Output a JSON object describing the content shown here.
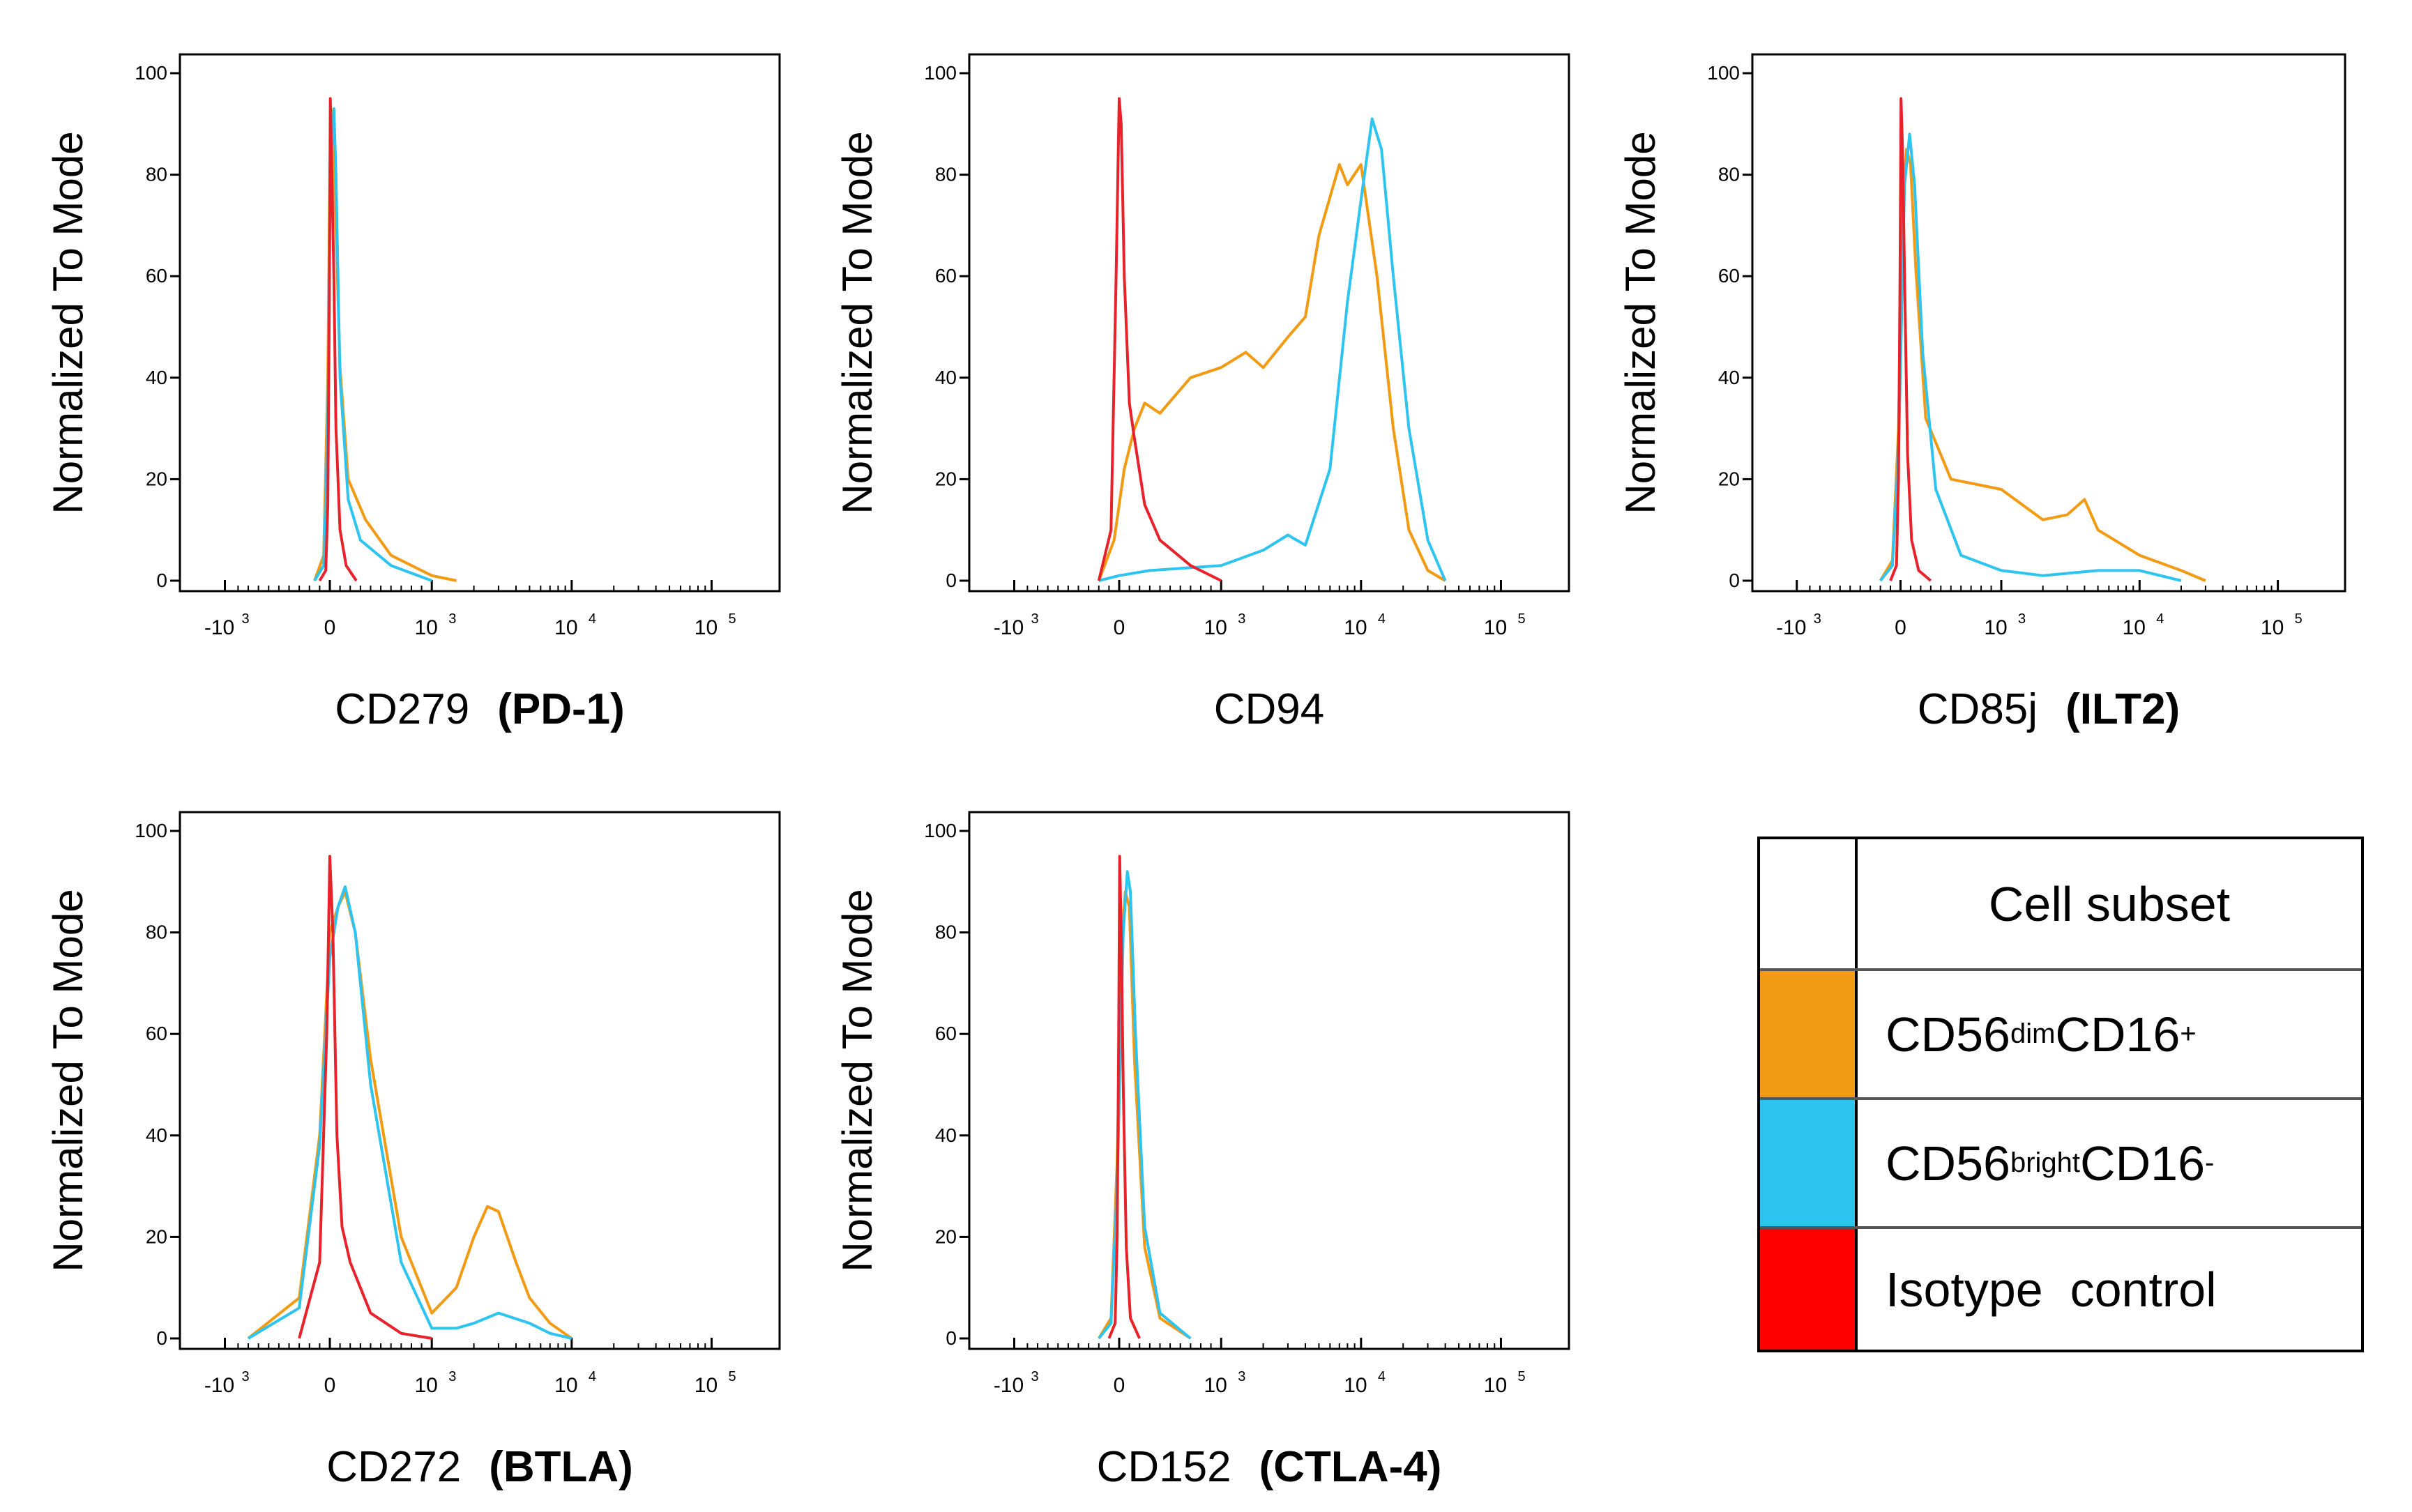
{
  "chart_data": {
    "type": "line",
    "series_legend": {
      "header": "Cell subset",
      "entries": [
        {
          "key": "dim",
          "base1": "CD56",
          "sup1": "dim",
          "base2": "CD16",
          "sup2": "+",
          "color": "#F29A12"
        },
        {
          "key": "bright",
          "base1": "CD56",
          "sup1": "bright",
          "base2": "CD16",
          "sup2": "-",
          "color": "#2EC4F0"
        },
        {
          "key": "iso",
          "text": "Isotype  control",
          "color": "#E8222A"
        }
      ]
    },
    "y_axis": {
      "label": "Normalized To Mode",
      "ticks": [
        0,
        20,
        40,
        60,
        80,
        100
      ],
      "ylim": [
        0,
        100
      ]
    },
    "x_axis": {
      "scale": "biexponential",
      "ticks": [
        {
          "pos": -1000,
          "base": "-10",
          "exp": "3"
        },
        {
          "pos": 0,
          "base": "0",
          "exp": ""
        },
        {
          "pos": 1000,
          "base": "10",
          "exp": "3"
        },
        {
          "pos": 10000,
          "base": "10",
          "exp": "4"
        },
        {
          "pos": 100000,
          "base": "10",
          "exp": "5"
        }
      ]
    },
    "panels": [
      {
        "id": "pd1",
        "title": "CD279",
        "title_bold": "(PD-1)",
        "series": {
          "iso": [
            [
              -100,
              0
            ],
            [
              -40,
              2
            ],
            [
              -20,
              15
            ],
            [
              -5,
              55
            ],
            [
              5,
              95
            ],
            [
              20,
              80
            ],
            [
              40,
              60
            ],
            [
              60,
              30
            ],
            [
              100,
              10
            ],
            [
              160,
              3
            ],
            [
              260,
              0
            ]
          ],
          "dim": [
            [
              -150,
              0
            ],
            [
              -60,
              5
            ],
            [
              -20,
              40
            ],
            [
              0,
              80
            ],
            [
              10,
              93
            ],
            [
              30,
              85
            ],
            [
              60,
              70
            ],
            [
              100,
              42
            ],
            [
              180,
              20
            ],
            [
              350,
              12
            ],
            [
              600,
              5
            ],
            [
              1000,
              1
            ],
            [
              1500,
              0
            ]
          ],
          "bright": [
            [
              -150,
              0
            ],
            [
              -60,
              3
            ],
            [
              -20,
              30
            ],
            [
              0,
              70
            ],
            [
              20,
              85
            ],
            [
              40,
              93
            ],
            [
              60,
              80
            ],
            [
              100,
              40
            ],
            [
              180,
              16
            ],
            [
              300,
              8
            ],
            [
              600,
              3
            ],
            [
              1000,
              0
            ]
          ]
        }
      },
      {
        "id": "cd94",
        "title": "CD94",
        "title_bold": "",
        "series": {
          "iso": [
            [
              -200,
              0
            ],
            [
              -80,
              10
            ],
            [
              -30,
              60
            ],
            [
              0,
              95
            ],
            [
              20,
              90
            ],
            [
              50,
              60
            ],
            [
              100,
              35
            ],
            [
              150,
              28
            ],
            [
              250,
              15
            ],
            [
              400,
              8
            ],
            [
              700,
              3
            ],
            [
              1000,
              0
            ]
          ],
          "dim": [
            [
              -200,
              0
            ],
            [
              -50,
              8
            ],
            [
              50,
              22
            ],
            [
              150,
              30
            ],
            [
              250,
              35
            ],
            [
              400,
              33
            ],
            [
              700,
              40
            ],
            [
              1000,
              42
            ],
            [
              1500,
              45
            ],
            [
              2000,
              42
            ],
            [
              3000,
              48
            ],
            [
              4000,
              52
            ],
            [
              5000,
              68
            ],
            [
              7000,
              82
            ],
            [
              8000,
              78
            ],
            [
              10000,
              82
            ],
            [
              13000,
              60
            ],
            [
              17000,
              30
            ],
            [
              22000,
              10
            ],
            [
              30000,
              2
            ],
            [
              40000,
              0
            ]
          ],
          "bright": [
            [
              -200,
              0
            ],
            [
              0,
              1
            ],
            [
              300,
              2
            ],
            [
              1000,
              3
            ],
            [
              2000,
              6
            ],
            [
              3000,
              9
            ],
            [
              4000,
              7
            ],
            [
              6000,
              22
            ],
            [
              8000,
              55
            ],
            [
              10000,
              75
            ],
            [
              12000,
              91
            ],
            [
              14000,
              85
            ],
            [
              17000,
              60
            ],
            [
              22000,
              30
            ],
            [
              30000,
              8
            ],
            [
              40000,
              0
            ]
          ]
        }
      },
      {
        "id": "ilt2",
        "title": "CD85j",
        "title_bold": "(ILT2)",
        "series": {
          "iso": [
            [
              -100,
              0
            ],
            [
              -40,
              3
            ],
            [
              -20,
              20
            ],
            [
              -5,
              60
            ],
            [
              5,
              95
            ],
            [
              20,
              85
            ],
            [
              40,
              60
            ],
            [
              70,
              25
            ],
            [
              110,
              8
            ],
            [
              180,
              2
            ],
            [
              300,
              0
            ]
          ],
          "dim": [
            [
              -200,
              0
            ],
            [
              -80,
              4
            ],
            [
              -20,
              30
            ],
            [
              20,
              75
            ],
            [
              60,
              85
            ],
            [
              100,
              82
            ],
            [
              150,
              62
            ],
            [
              250,
              32
            ],
            [
              500,
              20
            ],
            [
              1000,
              18
            ],
            [
              2000,
              12
            ],
            [
              3000,
              13
            ],
            [
              4000,
              16
            ],
            [
              5000,
              10
            ],
            [
              10000,
              5
            ],
            [
              20000,
              2
            ],
            [
              30000,
              0
            ]
          ],
          "bright": [
            [
              -200,
              0
            ],
            [
              -80,
              3
            ],
            [
              -20,
              25
            ],
            [
              40,
              78
            ],
            [
              90,
              88
            ],
            [
              140,
              78
            ],
            [
              220,
              45
            ],
            [
              350,
              18
            ],
            [
              600,
              5
            ],
            [
              1000,
              2
            ],
            [
              2000,
              1
            ],
            [
              5000,
              2
            ],
            [
              10000,
              2
            ],
            [
              20000,
              0
            ]
          ]
        }
      },
      {
        "id": "btla",
        "title": "CD272",
        "title_bold": "(BTLA)",
        "series": {
          "iso": [
            [
              -300,
              0
            ],
            [
              -100,
              15
            ],
            [
              -30,
              60
            ],
            [
              0,
              95
            ],
            [
              30,
              80
            ],
            [
              70,
              40
            ],
            [
              120,
              22
            ],
            [
              200,
              15
            ],
            [
              400,
              5
            ],
            [
              700,
              1
            ],
            [
              1000,
              0
            ]
          ],
          "dim": [
            [
              -800,
              0
            ],
            [
              -300,
              8
            ],
            [
              -100,
              40
            ],
            [
              0,
              80
            ],
            [
              80,
              85
            ],
            [
              150,
              88
            ],
            [
              250,
              80
            ],
            [
              400,
              55
            ],
            [
              700,
              20
            ],
            [
              1000,
              5
            ],
            [
              1500,
              10
            ],
            [
              2000,
              20
            ],
            [
              2500,
              26
            ],
            [
              3000,
              25
            ],
            [
              4000,
              15
            ],
            [
              5000,
              8
            ],
            [
              7000,
              3
            ],
            [
              10000,
              0
            ]
          ],
          "bright": [
            [
              -800,
              0
            ],
            [
              -300,
              6
            ],
            [
              -100,
              38
            ],
            [
              0,
              75
            ],
            [
              80,
              85
            ],
            [
              150,
              89
            ],
            [
              250,
              80
            ],
            [
              400,
              50
            ],
            [
              700,
              15
            ],
            [
              1000,
              2
            ],
            [
              1500,
              2
            ],
            [
              2000,
              3
            ],
            [
              3000,
              5
            ],
            [
              5000,
              3
            ],
            [
              7000,
              1
            ],
            [
              10000,
              0
            ]
          ]
        }
      },
      {
        "id": "ctla4",
        "title": "CD152",
        "title_bold": "(CTLA-4)",
        "series": {
          "iso": [
            [
              -100,
              0
            ],
            [
              -40,
              3
            ],
            [
              -20,
              20
            ],
            [
              -5,
              60
            ],
            [
              5,
              95
            ],
            [
              20,
              80
            ],
            [
              40,
              50
            ],
            [
              70,
              18
            ],
            [
              110,
              4
            ],
            [
              200,
              0
            ]
          ],
          "dim": [
            [
              -200,
              0
            ],
            [
              -80,
              4
            ],
            [
              -20,
              35
            ],
            [
              30,
              80
            ],
            [
              60,
              88
            ],
            [
              100,
              85
            ],
            [
              150,
              55
            ],
            [
              250,
              18
            ],
            [
              400,
              4
            ],
            [
              700,
              0
            ]
          ],
          "bright": [
            [
              -200,
              0
            ],
            [
              -80,
              3
            ],
            [
              -20,
              30
            ],
            [
              40,
              80
            ],
            [
              80,
              92
            ],
            [
              110,
              88
            ],
            [
              160,
              60
            ],
            [
              250,
              22
            ],
            [
              400,
              5
            ],
            [
              700,
              0
            ]
          ]
        }
      }
    ]
  }
}
